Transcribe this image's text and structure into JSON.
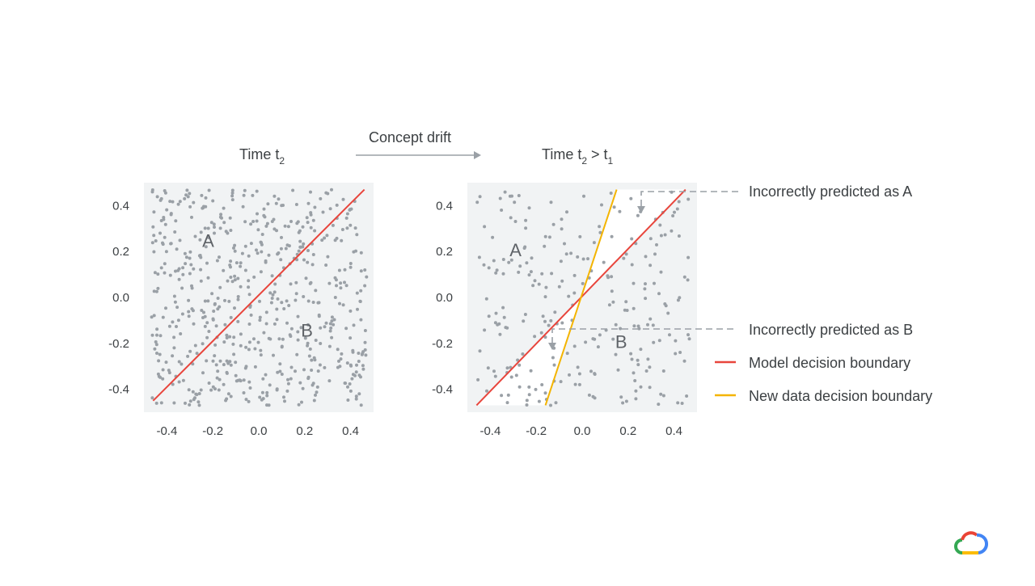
{
  "header": {
    "left_title": {
      "prefix": "Time t",
      "sub": "2"
    },
    "right_title": {
      "prefix": "Time t",
      "sub1": "2",
      "middle": " > t",
      "sub2": "1"
    },
    "arrow_label": "Concept drift"
  },
  "chart_data": [
    {
      "type": "scatter",
      "title": "Time t2",
      "xlim": [
        -0.5,
        0.5
      ],
      "ylim": [
        -0.5,
        0.5
      ],
      "xticks": [
        "-0.4",
        "-0.2",
        "0.0",
        "0.2",
        "0.4"
      ],
      "yticks": [
        "0.4",
        "0.2",
        "0.0",
        "-0.2",
        "-0.4"
      ],
      "xtick_values": [
        -0.4,
        -0.2,
        0.0,
        0.2,
        0.4
      ],
      "ytick_values": [
        0.4,
        0.2,
        0.0,
        -0.2,
        -0.4
      ],
      "region_labels": [
        {
          "text": "A",
          "x": -0.22,
          "y": 0.22
        },
        {
          "text": "B",
          "x": 0.21,
          "y": -0.17
        }
      ],
      "lines": [
        {
          "name": "Model decision boundary",
          "color": "#e8453c",
          "points": [
            [
              -0.46,
              -0.45
            ],
            [
              0.46,
              0.47
            ]
          ]
        }
      ],
      "point_count": 600
    },
    {
      "type": "scatter",
      "title": "Time t2 > t1",
      "xlim": [
        -0.5,
        0.5
      ],
      "ylim": [
        -0.5,
        0.5
      ],
      "xticks": [
        "-0.4",
        "-0.2",
        "0.0",
        "0.2",
        "0.4"
      ],
      "yticks": [
        "0.4",
        "0.2",
        "0.0",
        "-0.2",
        "-0.4"
      ],
      "xtick_values": [
        -0.4,
        -0.2,
        0.0,
        0.2,
        0.4
      ],
      "ytick_values": [
        0.4,
        0.2,
        0.0,
        -0.2,
        -0.4
      ],
      "region_labels": [
        {
          "text": "A",
          "x": -0.29,
          "y": 0.18
        },
        {
          "text": "B",
          "x": 0.17,
          "y": -0.22
        }
      ],
      "lines": [
        {
          "name": "Model decision boundary",
          "color": "#e8453c",
          "points": [
            [
              -0.46,
              -0.47
            ],
            [
              0.45,
              0.47
            ]
          ]
        },
        {
          "name": "New data decision boundary",
          "color": "#f4b400",
          "points": [
            [
              -0.16,
              -0.47
            ],
            [
              0.15,
              0.47
            ]
          ]
        }
      ],
      "point_count": 250
    }
  ],
  "annotations": {
    "incorrect_a": "Incorrectly predicted as A",
    "incorrect_b": "Incorrectly predicted as B"
  },
  "legend": [
    {
      "label": "Model decision boundary",
      "color": "#e8453c"
    },
    {
      "label": "New data decision boundary",
      "color": "#f4b400"
    }
  ],
  "colors": {
    "plot_bg": "#f1f3f4",
    "dots": "#9aa0a6",
    "annotation": "#9aa0a6"
  },
  "logo": {
    "icon": "google-cloud-logo-icon"
  }
}
